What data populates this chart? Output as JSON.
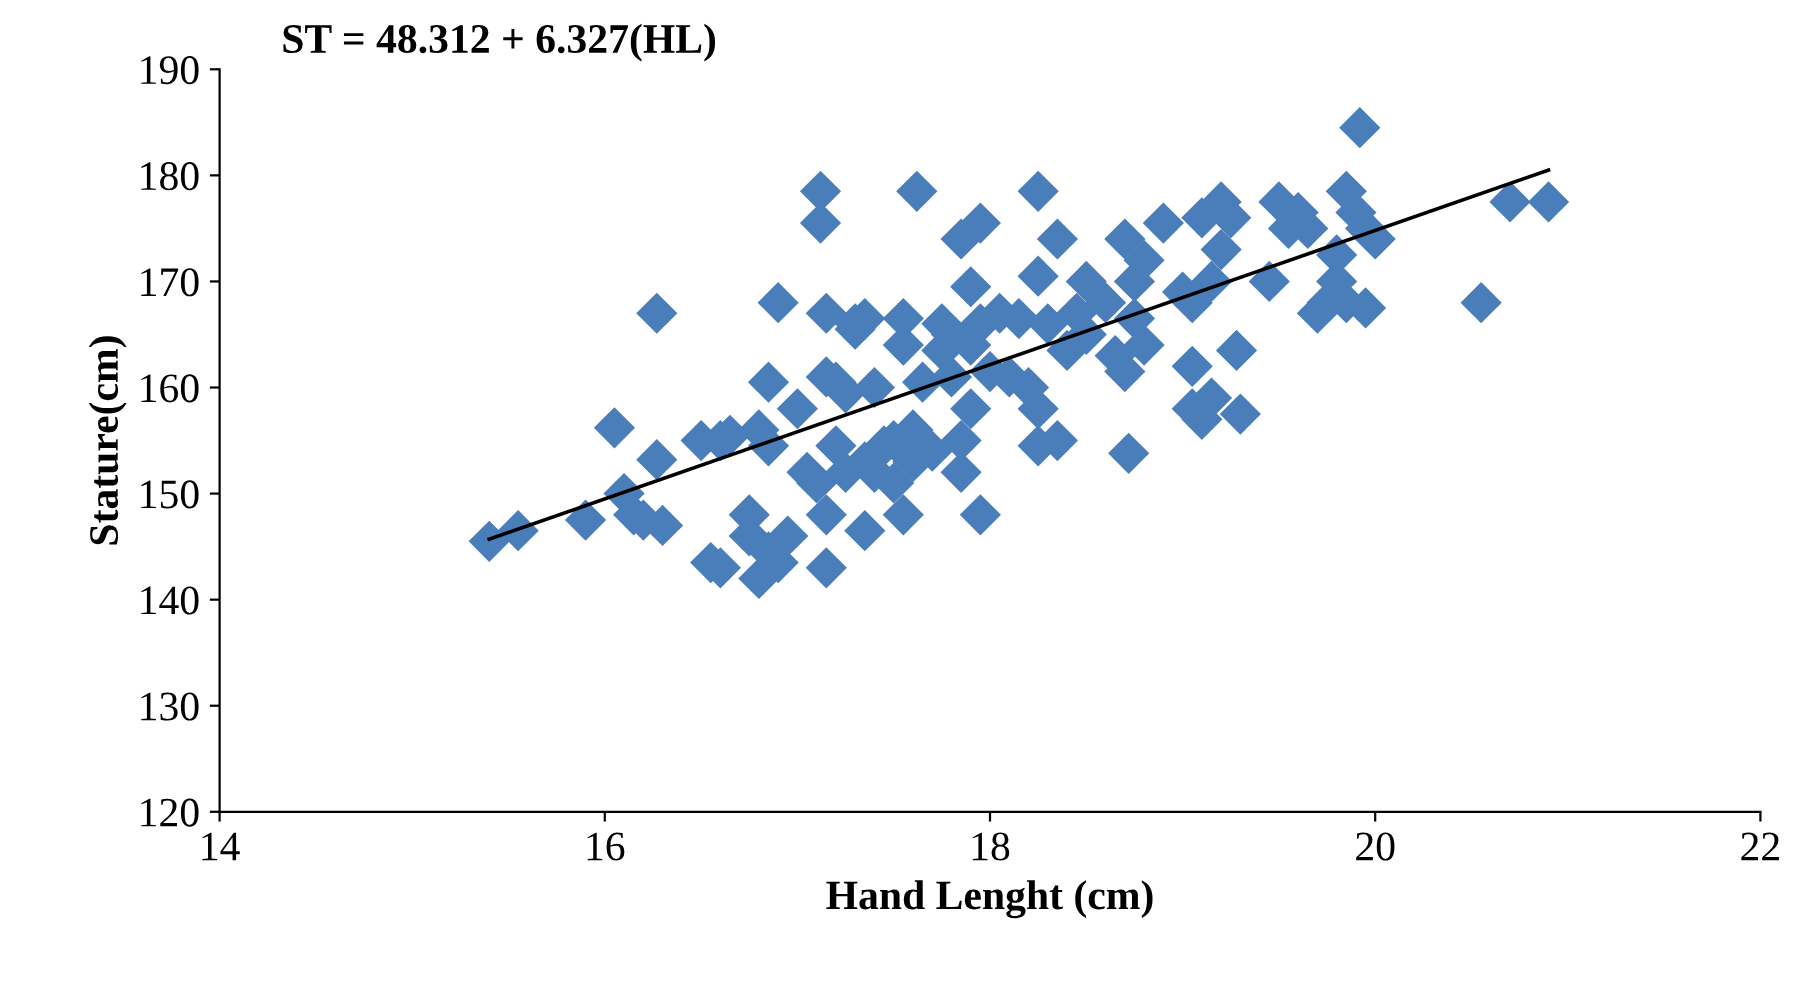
{
  "chart_data": {
    "type": "scatter",
    "title": "ST = 48.312 + 6.327(HL)",
    "xlabel": "Hand Lenght (cm)",
    "ylabel": "Stature(cm)",
    "xlim": [
      14,
      22
    ],
    "xticks": [
      14,
      16,
      18,
      20,
      22
    ],
    "ylim": [
      120,
      190
    ],
    "yticks": [
      120,
      130,
      140,
      150,
      160,
      170,
      180,
      190
    ],
    "grid": false,
    "legend": false,
    "marker": "diamond",
    "series": [
      {
        "color": "#4a7ebb",
        "x": [
          15.4,
          15.55,
          15.9,
          16.05,
          16.1,
          16.15,
          16.2,
          16.3,
          16.27,
          16.27,
          16.5,
          16.55,
          16.6,
          16.65,
          16.6,
          16.8,
          16.85,
          16.85,
          16.75,
          16.75,
          16.8,
          16.85,
          16.9,
          16.95,
          16.9,
          17.0,
          17.05,
          17.1,
          17.12,
          17.12,
          17.15,
          17.15,
          17.15,
          17.15,
          17.2,
          17.2,
          17.25,
          17.25,
          17.3,
          17.3,
          17.35,
          17.35,
          17.35,
          17.4,
          17.4,
          17.45,
          17.5,
          17.5,
          17.55,
          17.55,
          17.55,
          17.6,
          17.6,
          17.62,
          17.65,
          17.7,
          17.75,
          17.75,
          17.8,
          17.8,
          17.85,
          17.85,
          17.85,
          17.9,
          17.9,
          17.9,
          17.95,
          17.95,
          17.95,
          18.0,
          18.05,
          18.1,
          18.15,
          18.2,
          18.25,
          18.25,
          18.25,
          18.25,
          18.3,
          18.35,
          18.35,
          18.4,
          18.45,
          18.5,
          18.5,
          18.6,
          18.65,
          18.7,
          18.7,
          18.72,
          18.75,
          18.75,
          18.8,
          18.8,
          18.9,
          19.0,
          19.05,
          19.05,
          19.05,
          19.1,
          19.1,
          19.15,
          19.15,
          19.2,
          19.2,
          19.25,
          19.28,
          19.3,
          19.45,
          19.5,
          19.55,
          19.6,
          19.65,
          19.7,
          19.75,
          19.8,
          19.8,
          19.85,
          19.85,
          19.9,
          19.92,
          19.95,
          19.95,
          20.0,
          20.55,
          20.7,
          20.9
        ],
        "values": [
          145.5,
          146.5,
          147.5,
          156.2,
          150,
          148,
          147.5,
          147,
          153.2,
          167,
          155,
          143.5,
          143,
          155.5,
          155,
          156,
          160.5,
          154.5,
          148,
          146,
          142,
          144.5,
          143.5,
          146,
          168,
          158,
          152,
          151,
          178.5,
          175.5,
          148,
          143,
          161,
          167,
          160.5,
          154.5,
          159.5,
          152,
          166,
          165.5,
          166.5,
          153,
          146.5,
          152,
          160,
          154.5,
          151,
          155,
          148,
          164,
          166.5,
          156,
          153,
          178.5,
          160.5,
          154,
          163.5,
          166,
          161,
          165,
          152,
          155,
          174,
          158,
          169.5,
          164,
          175.5,
          148,
          166,
          161.5,
          167,
          161,
          166.5,
          160,
          158,
          178.5,
          170.5,
          154.5,
          166,
          155,
          174,
          163.5,
          167,
          170,
          165,
          168,
          163,
          161.5,
          174,
          153.8,
          170,
          166.5,
          164,
          172,
          175.5,
          169,
          158,
          162,
          168,
          157,
          176,
          170,
          159,
          177.5,
          173,
          176,
          163.5,
          157.5,
          170,
          177.5,
          175,
          176.5,
          175,
          167,
          168,
          172.5,
          170,
          178.5,
          168,
          176.5,
          184.5,
          175,
          167.5,
          174,
          168,
          177.5,
          177.5
        ]
      },
      {
        "type": "line",
        "color": "#000000",
        "marker": "none",
        "line_style": "solid",
        "x": [
          15.4,
          20.9
        ],
        "values": [
          145.7,
          180.5
        ]
      }
    ]
  }
}
